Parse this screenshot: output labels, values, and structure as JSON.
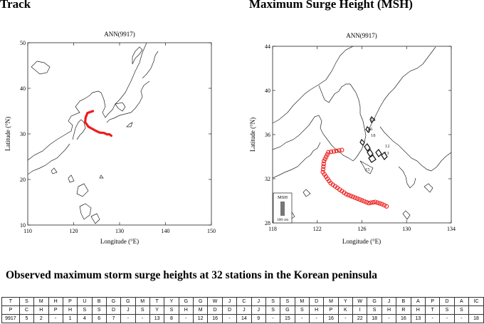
{
  "headings": {
    "left": "Track",
    "right": "Maximum Surge Height (MSH)"
  },
  "chart_data": [
    {
      "type": "line",
      "title": "ANN(9917)",
      "xlabel": "Longitude (°E)",
      "ylabel": "Latitude (°N)",
      "xlim": [
        110,
        150
      ],
      "ylim": [
        10,
        50
      ],
      "xticks": [
        "110",
        "120",
        "130",
        "140",
        "150"
      ],
      "yticks": [
        "10",
        "20",
        "30",
        "40",
        "50"
      ],
      "series": [
        {
          "color": "#ee1c1c",
          "x": [
            124.2,
            123.0,
            122.6,
            122.5,
            123.2,
            124.6,
            125.6,
            126.6,
            127.2,
            127.8,
            128.2
          ],
          "y": [
            35.0,
            34.6,
            33.6,
            32.6,
            31.6,
            30.8,
            30.3,
            30.2,
            29.9,
            29.9,
            29.6
          ]
        }
      ]
    },
    {
      "type": "scatter",
      "title": "ANN(9917)",
      "xlabel": "Longitude (°E)",
      "ylabel": "Latitude (°N)",
      "xlim": [
        118,
        134
      ],
      "ylim": [
        28,
        44
      ],
      "xticks": [
        "118",
        "122",
        "126",
        "130",
        "134"
      ],
      "yticks": [
        "28",
        "32",
        "36",
        "40",
        "44"
      ],
      "series": [
        {
          "color": "#ee1c1c",
          "x": [
            124.2,
            123.0,
            122.6,
            122.5,
            123.2,
            124.6,
            125.6,
            126.6,
            127.2,
            127.8,
            128.2
          ],
          "y": [
            34.6,
            34.4,
            33.6,
            32.6,
            31.6,
            30.6,
            30.2,
            29.8,
            29.9,
            29.7,
            29.5
          ]
        }
      ],
      "legend": {
        "title": "MSH",
        "scale": "100 cm"
      },
      "station_labels": [
        "18",
        "16",
        "18",
        "12",
        "13",
        "15"
      ]
    }
  ],
  "stations_title": "Observed maximum storm surge heights at 32 stations in the Korean peninsula",
  "station_table": {
    "row1": [
      "T",
      "S",
      "M",
      "H",
      "P",
      "U",
      "B",
      "G",
      "G",
      "M",
      "T",
      "Y",
      "G",
      "G",
      "W",
      "J",
      "C",
      "J",
      "S",
      "S",
      "M",
      "D",
      "M",
      "Y",
      "W",
      "G",
      "J",
      "B",
      "A",
      "P",
      "D",
      "A",
      "IC"
    ],
    "row2": [
      "P",
      "C",
      "H",
      "P",
      "H",
      "S",
      "S",
      "D",
      "J",
      "S",
      "Y",
      "S",
      "H",
      "M",
      "D",
      "D",
      "J",
      "J",
      "S",
      "G",
      "S",
      "H",
      "P",
      "K",
      "I",
      "S",
      "H",
      "R",
      "H",
      "T",
      "S",
      "S",
      ""
    ],
    "row3": [
      "9917",
      "5",
      "2",
      "-",
      "1",
      "4",
      "6",
      "7",
      "-",
      "-",
      "13",
      "8",
      "-",
      "12",
      "16",
      "-",
      "14",
      "9",
      "-",
      "15",
      "-",
      "-",
      "16",
      "-",
      "22",
      "18",
      "-",
      "16",
      "13",
      "-",
      "-",
      "-",
      "18"
    ]
  }
}
